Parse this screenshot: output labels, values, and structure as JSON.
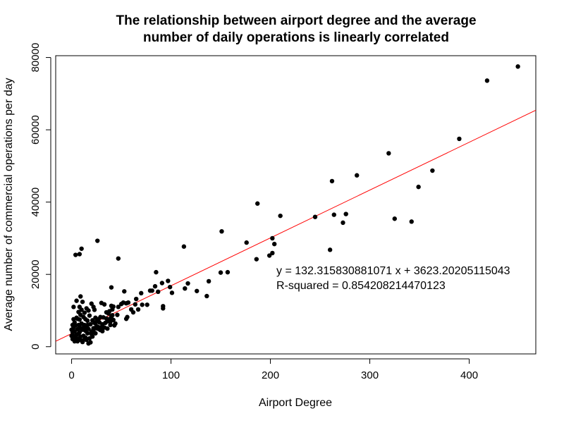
{
  "chart_data": {
    "type": "scatter",
    "title_lines": [
      "The relationship between airport degree and the average",
      "number of daily operations is linearly correlated"
    ],
    "xlabel": "Airport Degree",
    "ylabel": "Average number of commercial operations per day",
    "xlim": [
      -16,
      467
    ],
    "ylim": [
      -2000,
      80500
    ],
    "xticks": [
      0,
      100,
      200,
      300,
      400
    ],
    "xtick_labels": [
      "0",
      "100",
      "200",
      "300",
      "400"
    ],
    "yticks": [
      0,
      20000,
      40000,
      60000,
      80000
    ],
    "ytick_labels": [
      "0",
      "20000",
      "40000",
      "60000",
      "80000"
    ],
    "grid": false,
    "legend": "none",
    "point_color": "#000000",
    "fit_line": {
      "slope": 132.315830881071,
      "intercept": 3623.20205115043,
      "color": "#ff0000"
    },
    "annotations": [
      {
        "text": "y = 132.315830881071 x + 3623.20205115043",
        "x": 206,
        "y": 20000
      },
      {
        "text": "R-squared = 0.854208214470123",
        "x": 206,
        "y": 15900
      }
    ],
    "series": [
      {
        "points": [
          [
            449,
            77500
          ],
          [
            418,
            73600
          ],
          [
            390,
            57500
          ],
          [
            363,
            48700
          ],
          [
            349,
            44200
          ],
          [
            342,
            34600
          ],
          [
            325,
            35400
          ],
          [
            319,
            53500
          ],
          [
            287,
            47400
          ],
          [
            276,
            36700
          ],
          [
            273,
            34300
          ],
          [
            264,
            36500
          ],
          [
            262,
            45800
          ],
          [
            260,
            26800
          ],
          [
            245,
            35900
          ],
          [
            210,
            36200
          ],
          [
            204,
            28400
          ],
          [
            202,
            30000
          ],
          [
            202,
            25900
          ],
          [
            199,
            25200
          ],
          [
            187,
            39600
          ],
          [
            186,
            24200
          ],
          [
            176,
            28800
          ],
          [
            157,
            20600
          ],
          [
            151,
            31900
          ],
          [
            150,
            20500
          ],
          [
            138,
            18100
          ],
          [
            136,
            14000
          ],
          [
            126,
            15400
          ],
          [
            117,
            17500
          ],
          [
            114,
            16100
          ],
          [
            113,
            27700
          ],
          [
            101,
            14900
          ],
          [
            99,
            16500
          ],
          [
            97,
            18200
          ],
          [
            92,
            11200
          ],
          [
            92,
            10600
          ],
          [
            91,
            17600
          ],
          [
            87,
            15200
          ],
          [
            85,
            20600
          ],
          [
            84,
            16700
          ],
          [
            81,
            15500
          ],
          [
            79,
            15500
          ],
          [
            76,
            11600
          ],
          [
            71,
            11600
          ],
          [
            70,
            14800
          ],
          [
            67,
            10300
          ],
          [
            65,
            13200
          ],
          [
            64,
            11700
          ],
          [
            62,
            9500
          ],
          [
            60,
            10300
          ],
          [
            57,
            12200
          ],
          [
            56,
            8200
          ],
          [
            55,
            12000
          ],
          [
            55,
            7700
          ],
          [
            53,
            15300
          ],
          [
            52,
            12200
          ],
          [
            50,
            11800
          ],
          [
            47,
            24400
          ],
          [
            47,
            11000
          ],
          [
            46,
            8800
          ],
          [
            44,
            6400
          ],
          [
            42,
            11100
          ],
          [
            41,
            10300
          ],
          [
            41,
            8700
          ],
          [
            40,
            16400
          ],
          [
            40,
            11300
          ],
          [
            40,
            8300
          ],
          [
            39,
            6000
          ],
          [
            38,
            7600
          ],
          [
            37,
            9200
          ],
          [
            36,
            7000
          ],
          [
            35,
            9500
          ],
          [
            34,
            6600
          ],
          [
            33,
            11700
          ],
          [
            32,
            8100
          ],
          [
            31,
            6200
          ],
          [
            30,
            12100
          ],
          [
            30,
            5400
          ],
          [
            29,
            8200
          ],
          [
            28,
            4800
          ],
          [
            28,
            6700
          ],
          [
            27,
            5400
          ],
          [
            26,
            29300
          ],
          [
            25,
            6900
          ],
          [
            25,
            5700
          ],
          [
            24,
            8000
          ],
          [
            23,
            10200
          ],
          [
            22,
            11000
          ],
          [
            22,
            5100
          ],
          [
            21,
            7300
          ],
          [
            20,
            11900
          ],
          [
            20,
            4200
          ],
          [
            19,
            6200
          ],
          [
            18,
            8600
          ],
          [
            17,
            10000
          ],
          [
            17,
            4900
          ],
          [
            16,
            7200
          ],
          [
            16,
            3700
          ],
          [
            15,
            10600
          ],
          [
            15,
            5400
          ],
          [
            14,
            7600
          ],
          [
            14,
            2500
          ],
          [
            13,
            9400
          ],
          [
            13,
            6000
          ],
          [
            12,
            8200
          ],
          [
            12,
            3000
          ],
          [
            11,
            12400
          ],
          [
            11,
            4700
          ],
          [
            10,
            27100
          ],
          [
            10,
            10200
          ],
          [
            10,
            6400
          ],
          [
            10,
            1700
          ],
          [
            9,
            13900
          ],
          [
            9,
            8800
          ],
          [
            9,
            5200
          ],
          [
            9,
            2800
          ],
          [
            8,
            25600
          ],
          [
            8,
            11000
          ],
          [
            8,
            7500
          ],
          [
            8,
            4000
          ],
          [
            7,
            9600
          ],
          [
            7,
            6000
          ],
          [
            7,
            2200
          ],
          [
            6,
            7700
          ],
          [
            6,
            4800
          ],
          [
            5,
            12700
          ],
          [
            5,
            8000
          ],
          [
            5,
            3300
          ],
          [
            4,
            25400
          ],
          [
            4,
            5900
          ],
          [
            4,
            2400
          ],
          [
            3,
            6700
          ],
          [
            3,
            4200
          ],
          [
            3,
            1500
          ],
          [
            2,
            11000
          ],
          [
            2,
            7600
          ],
          [
            2,
            5300
          ],
          [
            2,
            3000
          ],
          [
            1,
            6000
          ],
          [
            1,
            4000
          ],
          [
            1,
            2100
          ],
          [
            0,
            4700
          ],
          [
            0,
            3000
          ],
          [
            17,
            900
          ],
          [
            18,
            2300
          ],
          [
            19,
            1200
          ],
          [
            20,
            3500
          ],
          [
            21,
            2800
          ],
          [
            22,
            4500
          ],
          [
            23,
            6600
          ],
          [
            24,
            3700
          ],
          [
            26,
            5000
          ],
          [
            27,
            7600
          ],
          [
            29,
            4600
          ],
          [
            31,
            4300
          ],
          [
            33,
            5300
          ],
          [
            35,
            7800
          ],
          [
            36,
            5000
          ],
          [
            38,
            9800
          ],
          [
            39,
            6900
          ],
          [
            42,
            7400
          ],
          [
            43,
            5900
          ],
          [
            6,
            1500
          ],
          [
            7,
            3600
          ],
          [
            11,
            1300
          ],
          [
            12,
            5300
          ],
          [
            13,
            2000
          ],
          [
            14,
            4400
          ],
          [
            15,
            1900
          ],
          [
            16,
            6000
          ]
        ]
      }
    ]
  }
}
